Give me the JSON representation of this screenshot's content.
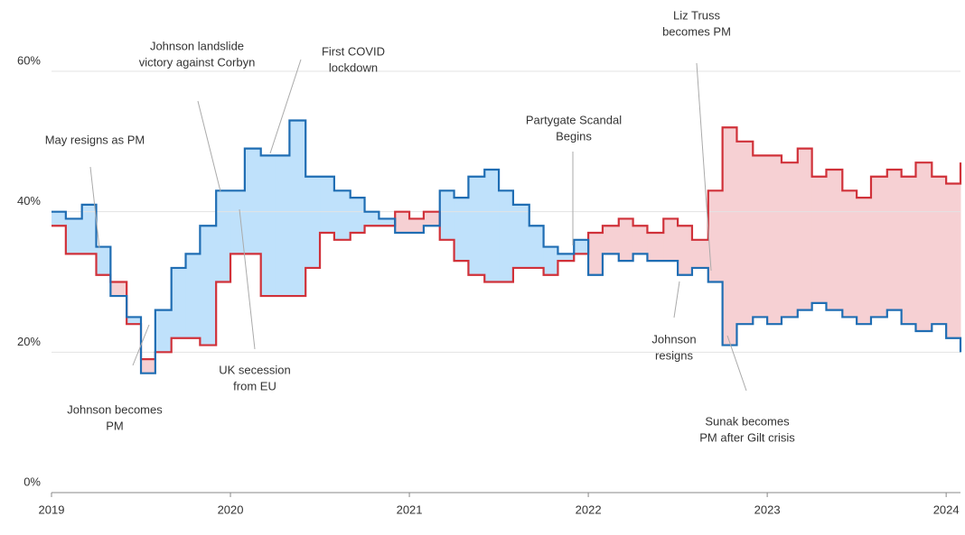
{
  "chart_data": {
    "type": "step-line",
    "x": [
      2019.0,
      2019.08,
      2019.17,
      2019.25,
      2019.33,
      2019.42,
      2019.5,
      2019.58,
      2019.67,
      2019.75,
      2019.83,
      2019.92,
      2020.0,
      2020.08,
      2020.17,
      2020.25,
      2020.33,
      2020.42,
      2020.5,
      2020.58,
      2020.67,
      2020.75,
      2020.83,
      2020.92,
      2021.0,
      2021.08,
      2021.17,
      2021.25,
      2021.33,
      2021.42,
      2021.5,
      2021.58,
      2021.67,
      2021.75,
      2021.83,
      2021.92,
      2022.0,
      2022.08,
      2022.17,
      2022.25,
      2022.33,
      2022.42,
      2022.5,
      2022.58,
      2022.67,
      2022.75,
      2022.83,
      2022.92,
      2023.0,
      2023.08,
      2023.17,
      2023.25,
      2023.33,
      2023.42,
      2023.5,
      2023.58,
      2023.67,
      2023.75,
      2023.83,
      2023.92,
      2024.0,
      2024.08
    ],
    "series": [
      {
        "color": "#1f6db3",
        "fill_color": "#bfe1fb",
        "values": [
          40,
          39,
          41,
          35,
          28,
          25,
          17,
          26,
          32,
          34,
          38,
          43,
          43,
          49,
          48,
          48,
          53,
          45,
          45,
          43,
          42,
          40,
          39,
          37,
          37,
          38,
          43,
          42,
          45,
          46,
          43,
          41,
          38,
          35,
          34,
          36,
          31,
          34,
          33,
          34,
          33,
          33,
          31,
          32,
          30,
          21,
          24,
          25,
          24,
          25,
          26,
          27,
          26,
          25,
          24,
          25,
          26,
          24,
          23,
          24,
          22,
          20
        ]
      },
      {
        "color": "#d03139",
        "fill_color": "#f6d0d3",
        "values": [
          38,
          34,
          34,
          31,
          30,
          24,
          19,
          20,
          22,
          22,
          21,
          30,
          34,
          34,
          28,
          28,
          28,
          32,
          37,
          36,
          37,
          38,
          38,
          40,
          39,
          40,
          36,
          33,
          31,
          30,
          30,
          32,
          32,
          31,
          33,
          34,
          37,
          38,
          39,
          38,
          37,
          39,
          38,
          36,
          43,
          52,
          50,
          48,
          48,
          47,
          49,
          45,
          46,
          43,
          42,
          45,
          46,
          45,
          47,
          45,
          44,
          47
        ]
      }
    ],
    "xlim": [
      2019.0,
      2024.08
    ],
    "xticks": [
      2019,
      2020,
      2021,
      2022,
      2023,
      2024
    ],
    "ylim": [
      0,
      60
    ],
    "yticks": [
      {
        "value": 0,
        "label": "0%"
      },
      {
        "value": 20,
        "label": "20%"
      },
      {
        "value": 40,
        "label": "40%"
      },
      {
        "value": 60,
        "label": "60%"
      }
    ],
    "grid": true,
    "annotations": [
      {
        "text": [
          "May resigns as PM"
        ]
      },
      {
        "text": [
          "Johnson becomes",
          "PM"
        ]
      },
      {
        "text": [
          "Johnson landslide",
          "victory against Corbyn"
        ]
      },
      {
        "text": [
          "UK secession",
          "from EU"
        ]
      },
      {
        "text": [
          "First COVID",
          "lockdown"
        ]
      },
      {
        "text": [
          "Partygate Scandal",
          "Begins"
        ]
      },
      {
        "text": [
          "Liz Truss",
          "becomes PM"
        ]
      },
      {
        "text": [
          "Johnson",
          "resigns"
        ]
      },
      {
        "text": [
          "Sunak becomes",
          "PM after Gilt crisis"
        ]
      }
    ]
  }
}
